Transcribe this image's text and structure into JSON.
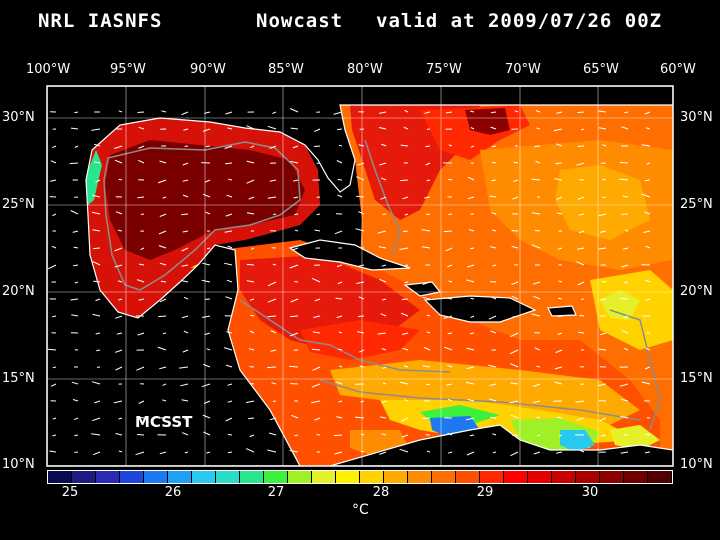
{
  "header": {
    "product": "NRL IASNFS",
    "run_type": "Nowcast",
    "valid_text": "valid at 2009/07/26 00Z"
  },
  "axes": {
    "lon_labels": [
      "100°W",
      "95°W",
      "90°W",
      "85°W",
      "80°W",
      "75°W",
      "70°W",
      "65°W",
      "60°W"
    ],
    "lat_labels": [
      "30°N",
      "25°N",
      "20°N",
      "15°N",
      "10°N"
    ]
  },
  "annotation": {
    "mcsst": "MCSST"
  },
  "colorbar": {
    "tick_labels": [
      "25",
      "26",
      "27",
      "28",
      "29",
      "30"
    ],
    "unit": "°C",
    "colors": [
      "#0a0a50",
      "#1c1c82",
      "#2a2ab4",
      "#1e46dc",
      "#1e78f0",
      "#1ea0f5",
      "#28c8f0",
      "#28dcc8",
      "#28e68c",
      "#3cf03c",
      "#a0f028",
      "#e6f028",
      "#fff000",
      "#ffd200",
      "#ffaa00",
      "#ff8c00",
      "#ff6e00",
      "#ff5000",
      "#ff2800",
      "#ff0000",
      "#e60000",
      "#c80000",
      "#aa0000",
      "#8c0000",
      "#6e0000",
      "#500000"
    ]
  },
  "map": {
    "land_color": "#000000",
    "coast_color": "#ffffff",
    "bathymetry_color": "#8c8c8c",
    "sst_dominant": "#e61a0a",
    "sst_hot": "#7a0000",
    "sst_cool": "#20c8f0"
  }
}
